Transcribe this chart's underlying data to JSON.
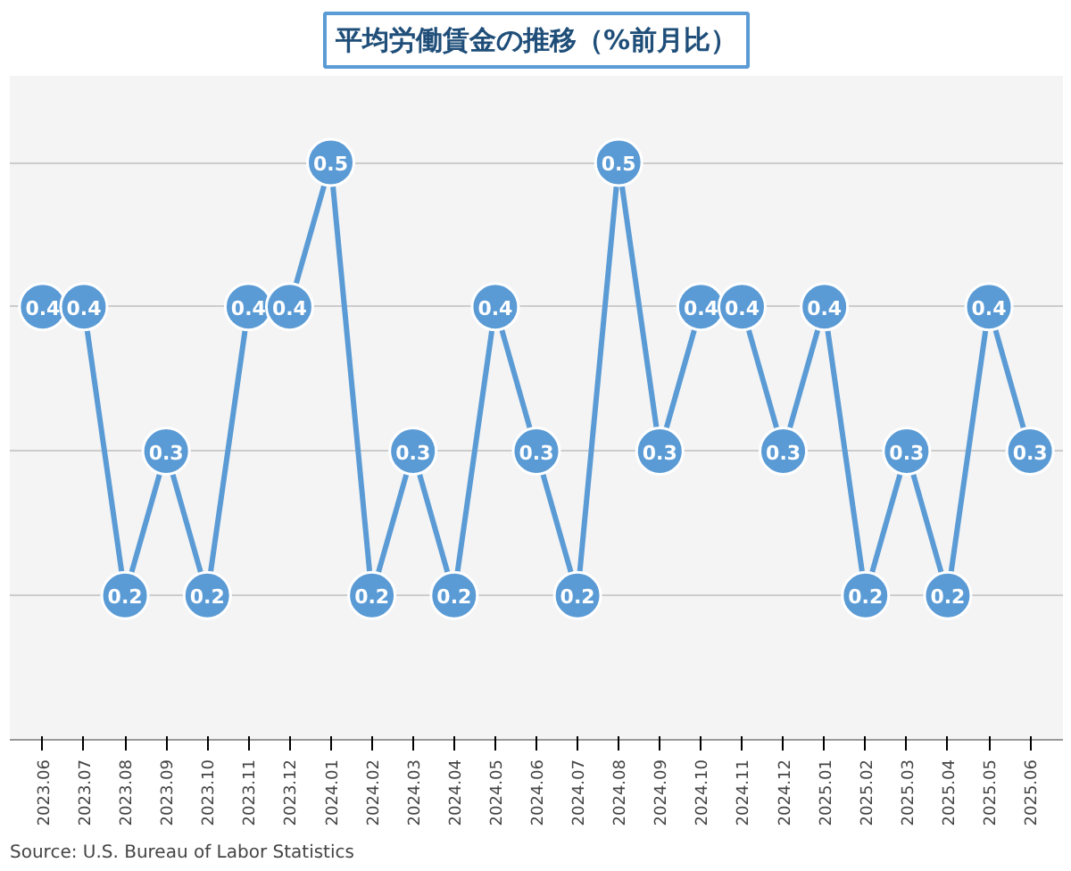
{
  "chart_data": {
    "type": "line",
    "title": "平均労働賃金の推移（%前月比）",
    "categories": [
      "2023.06",
      "2023.07",
      "2023.08",
      "2023.09",
      "2023.10",
      "2023.11",
      "2023.12",
      "2024.01",
      "2024.02",
      "2024.03",
      "2024.04",
      "2024.05",
      "2024.06",
      "2024.07",
      "2024.08",
      "2024.09",
      "2024.10",
      "2024.11",
      "2024.12",
      "2025.01",
      "2025.02",
      "2025.03",
      "2025.04",
      "2025.05",
      "2025.06"
    ],
    "series": [
      {
        "color": "#5b9bd5",
        "values": [
          0.4,
          0.4,
          0.2,
          0.3,
          0.2,
          0.4,
          0.4,
          0.5,
          0.2,
          0.3,
          0.2,
          0.4,
          0.3,
          0.2,
          0.5,
          0.3,
          0.4,
          0.4,
          0.3,
          0.4,
          0.2,
          0.3,
          0.2,
          0.4,
          0.3
        ]
      }
    ],
    "ylim": [
      0.1,
      0.56
    ],
    "yticks": [
      {
        "value": 0.2,
        "label": null
      },
      {
        "value": 0.3,
        "label": null
      },
      {
        "value": 0.4,
        "label": null
      },
      {
        "value": 0.5,
        "label": null
      }
    ],
    "grid": "y",
    "tick_labels": "x",
    "marker": "circle",
    "line_style": "solid",
    "data_labels": true,
    "annotations": [
      "Source:    U.S. Bureau of Labor Statistics"
    ]
  }
}
